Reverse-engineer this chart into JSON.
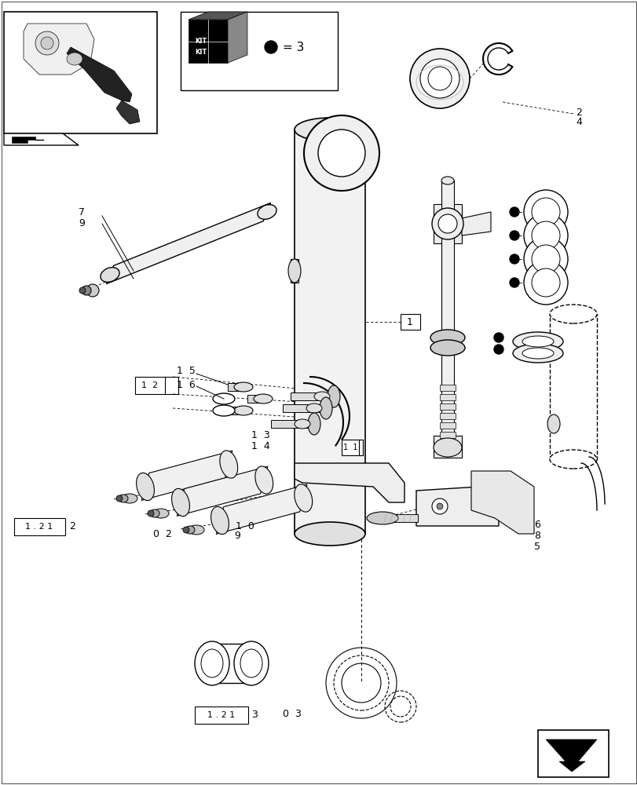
{
  "bg_color": "#ffffff",
  "fig_width": 8.12,
  "fig_height": 10.0,
  "dpi": 100
}
